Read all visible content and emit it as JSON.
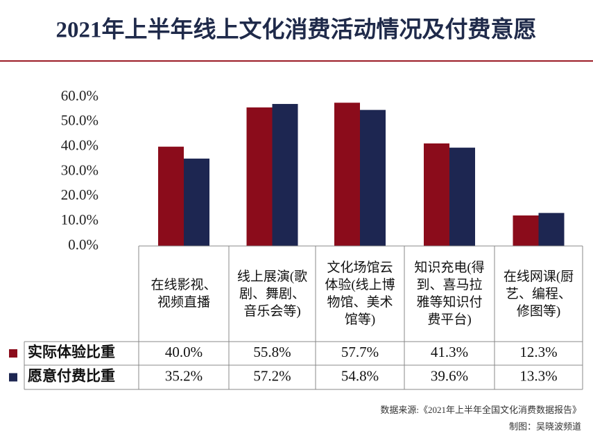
{
  "chart_data": {
    "type": "bar",
    "title": "2021年上半年线上文化消费活动情况及付费意愿",
    "categories": [
      "在线影视、视频直播",
      "线上展演(歌剧、舞剧、音乐会等)",
      "文化场馆云体验(线上博物馆、美术馆等)",
      "知识充电(得到、喜马拉雅等知识付费平台)",
      "在线网课(厨艺、编程、修图等)"
    ],
    "series": [
      {
        "name": "实际体验比重",
        "color": "#8b0c1b",
        "values": [
          40.0,
          55.8,
          57.7,
          41.3,
          12.3
        ],
        "value_labels": [
          "40.0%",
          "55.8%",
          "57.7%",
          "41.3%",
          "12.3%"
        ]
      },
      {
        "name": "愿意付费比重",
        "color": "#1d2651",
        "values": [
          35.2,
          57.2,
          54.8,
          39.6,
          13.3
        ],
        "value_labels": [
          "35.2%",
          "57.2%",
          "54.8%",
          "39.6%",
          "13.3%"
        ]
      }
    ],
    "ylim": [
      0,
      60
    ],
    "yticks": [
      {
        "value": 0,
        "label": "0.0%"
      },
      {
        "value": 10,
        "label": "10.0%"
      },
      {
        "value": 20,
        "label": "20.0%"
      },
      {
        "value": 30,
        "label": "30.0%"
      },
      {
        "value": 40,
        "label": "40.0%"
      },
      {
        "value": 50,
        "label": "50.0%"
      },
      {
        "value": 60,
        "label": "60.0%"
      }
    ],
    "grid": false,
    "source": "数据来源:《2021年上半年全国文化消费数据报告》",
    "credit": "制图：吴晓波频道"
  }
}
